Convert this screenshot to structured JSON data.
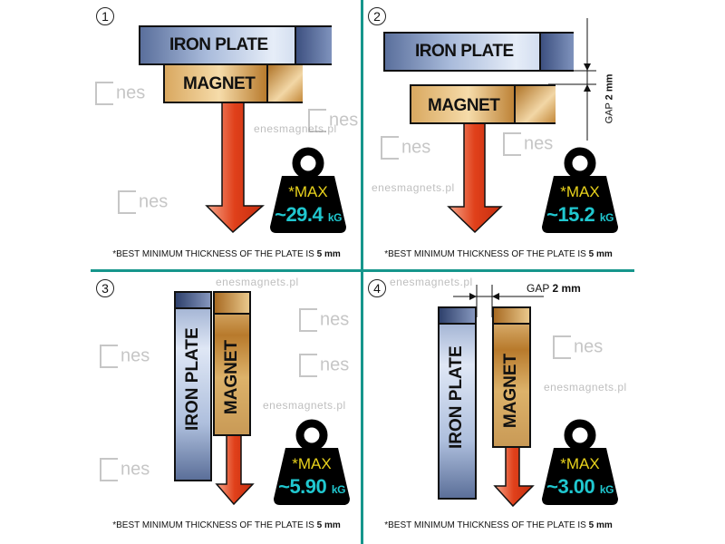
{
  "colors": {
    "divider": "#16968c",
    "max_text": "#e8d21c",
    "value_text": "#20c7cf",
    "arrow": "#e0401a"
  },
  "watermark": {
    "logo": "enes",
    "site": "enesmagnets.pl"
  },
  "panels": [
    {
      "number": "1",
      "plate": "IRON PLATE",
      "magnet": "MAGNET",
      "max": "*MAX",
      "value": "~29.4",
      "unit": "kG",
      "footnote": "*BEST MINIMUM THICKNESS OF THE PLATE IS",
      "footnote_bold": "5 mm"
    },
    {
      "number": "2",
      "plate": "IRON PLATE",
      "magnet": "MAGNET",
      "gap_label": "GAP",
      "gap_value": "2 mm",
      "max": "*MAX",
      "value": "~15.2",
      "unit": "kG",
      "footnote": "*BEST MINIMUM THICKNESS OF THE PLATE IS",
      "footnote_bold": "5 mm"
    },
    {
      "number": "3",
      "plate": "IRON  PLATE",
      "magnet": "MAGNET",
      "max": "*MAX",
      "value": "~5.90",
      "unit": "kG",
      "footnote": "*BEST MINIMUM THICKNESS OF THE PLATE IS",
      "footnote_bold": "5 mm"
    },
    {
      "number": "4",
      "plate": "IRON PLATE",
      "magnet": "MAGNET",
      "gap_label": "GAP",
      "gap_value": "2 mm",
      "max": "*MAX",
      "value": "~3.00",
      "unit": "kG",
      "footnote": "*BEST MINIMUM THICKNESS OF THE PLATE IS",
      "footnote_bold": "5 mm"
    }
  ]
}
